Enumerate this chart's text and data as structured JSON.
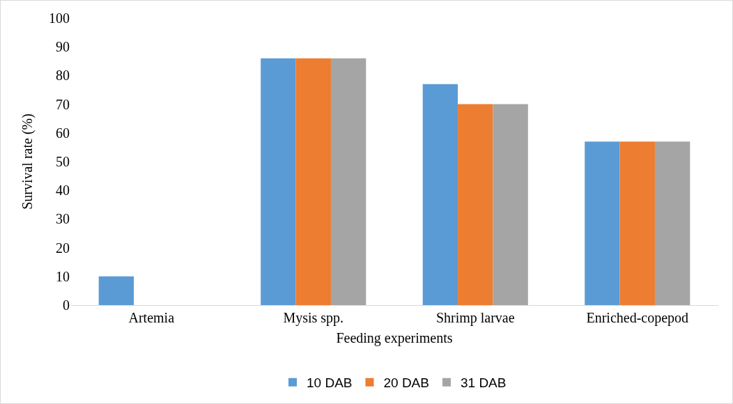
{
  "chart_data": {
    "type": "bar",
    "xlabel": "Feeding experiments",
    "ylabel": "Survival rate (%)",
    "categories": [
      "Artemia",
      "Mysis spp.",
      "Shrimp larvae",
      "Enriched-copepod"
    ],
    "series": [
      {
        "name": "10 DAB",
        "color": "#5b9bd5",
        "values": [
          10,
          86,
          77,
          57
        ]
      },
      {
        "name": "20 DAB",
        "color": "#ed7d31",
        "values": [
          0,
          86,
          70,
          57
        ]
      },
      {
        "name": "31 DAB",
        "color": "#a5a5a5",
        "values": [
          0,
          86,
          70,
          57
        ]
      }
    ],
    "ylim": [
      0,
      100
    ],
    "yticks": [
      0,
      10,
      20,
      30,
      40,
      50,
      60,
      70,
      80,
      90,
      100
    ],
    "grid": false,
    "legend": "bottom"
  }
}
